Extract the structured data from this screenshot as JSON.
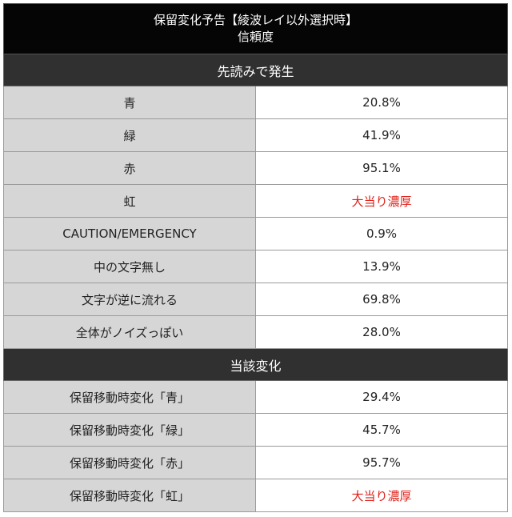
{
  "title_line1": "保留変化予告【綾波レイ以外選択時】",
  "title_line2": "信頼度",
  "sections": [
    {
      "header": "先読みで発生",
      "rows": [
        {
          "label": "青",
          "value": "20.8%",
          "highlight": false
        },
        {
          "label": "緑",
          "value": "41.9%",
          "highlight": false
        },
        {
          "label": "赤",
          "value": "95.1%",
          "highlight": false
        },
        {
          "label": "虹",
          "value": "大当り濃厚",
          "highlight": true
        },
        {
          "label": "CAUTION/EMERGENCY",
          "value": "0.9%",
          "highlight": false
        },
        {
          "label": "中の文字無し",
          "value": "13.9%",
          "highlight": false
        },
        {
          "label": "文字が逆に流れる",
          "value": "69.8%",
          "highlight": false
        },
        {
          "label": "全体がノイズっぽい",
          "value": "28.0%",
          "highlight": false
        }
      ]
    },
    {
      "header": "当該変化",
      "rows": [
        {
          "label": "保留移動時変化「青」",
          "value": "29.4%",
          "highlight": false
        },
        {
          "label": "保留移動時変化「緑」",
          "value": "45.7%",
          "highlight": false
        },
        {
          "label": "保留移動時変化「赤」",
          "value": "95.7%",
          "highlight": false
        },
        {
          "label": "保留移動時変化「虹」",
          "value": "大当り濃厚",
          "highlight": true
        }
      ]
    }
  ],
  "colors": {
    "title_bg": "#050505",
    "section_bg": "#303030",
    "label_bg": "#d6d6d6",
    "value_bg": "#ffffff",
    "highlight_text": "#e0221b"
  }
}
